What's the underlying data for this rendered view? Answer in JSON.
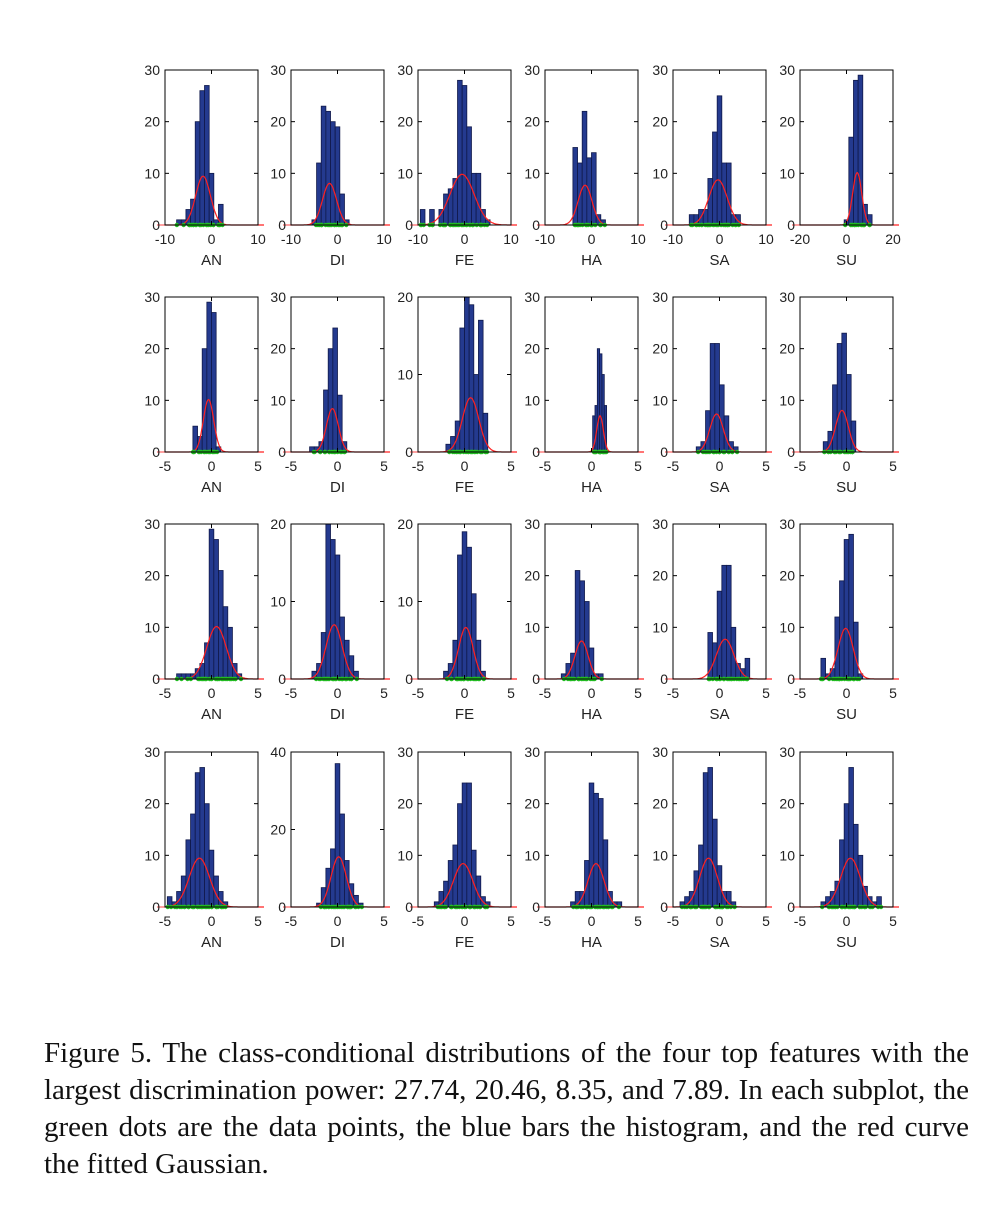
{
  "figure": {
    "caption": "Figure 5. The class-conditional distributions of the four top features with the largest discrimination power: 27.74, 20.46, 8.35, and 7.89. In each subplot, the green dots are the data points, the blue bars the histogram, and the red curve the fitted Gaussian.",
    "colors": {
      "bar": "#243a8f",
      "bar_edge": "#10194a",
      "gaussian": "#ff2020",
      "points": "#22bb22",
      "axes": "#000000"
    }
  },
  "chart_data": [
    {
      "type": "bar",
      "xlabel": "AN",
      "xlim": [
        -10,
        10
      ],
      "ylim": [
        0,
        30
      ],
      "xticks": [
        -10,
        0,
        10
      ],
      "yticks": [
        0,
        10,
        20,
        30
      ],
      "bin_centers": [
        -7,
        -6,
        -5,
        -4,
        -3,
        -2,
        -1,
        0,
        1,
        2
      ],
      "values": [
        1,
        1,
        3,
        5,
        20,
        26,
        27,
        10,
        1,
        4
      ]
    },
    {
      "type": "bar",
      "xlabel": "DI",
      "xlim": [
        -10,
        10
      ],
      "ylim": [
        0,
        30
      ],
      "xticks": [
        -10,
        0,
        10
      ],
      "yticks": [
        0,
        10,
        20,
        30
      ],
      "bin_centers": [
        -5,
        -4,
        -3,
        -2,
        -1,
        0,
        1,
        2
      ],
      "values": [
        1,
        12,
        23,
        22,
        20,
        19,
        6,
        1
      ]
    },
    {
      "type": "bar",
      "xlabel": "FE",
      "xlim": [
        -10,
        10
      ],
      "ylim": [
        0,
        30
      ],
      "xticks": [
        -10,
        0,
        10
      ],
      "yticks": [
        0,
        10,
        20,
        30
      ],
      "bin_centers": [
        -9,
        -7,
        -5,
        -4,
        -3,
        -2,
        -1,
        0,
        1,
        2,
        3,
        4,
        5
      ],
      "values": [
        3,
        3,
        3,
        6,
        7,
        9,
        28,
        27,
        19,
        10,
        10,
        3,
        1
      ]
    },
    {
      "type": "bar",
      "xlabel": "HA",
      "xlim": [
        -10,
        10
      ],
      "ylim": [
        0,
        30
      ],
      "xticks": [
        -10,
        0,
        10
      ],
      "yticks": [
        0,
        10,
        20,
        30
      ],
      "bin_centers": [
        -3.5,
        -2.5,
        -1.5,
        -0.5,
        0.5,
        1.5,
        2.5
      ],
      "values": [
        15,
        12,
        22,
        13,
        14,
        2,
        1
      ]
    },
    {
      "type": "bar",
      "xlabel": "SA",
      "xlim": [
        -10,
        10
      ],
      "ylim": [
        0,
        30
      ],
      "xticks": [
        -10,
        0,
        10
      ],
      "yticks": [
        0,
        10,
        20,
        30
      ],
      "bin_centers": [
        -6,
        -5,
        -4,
        -3,
        -2,
        -1,
        0,
        1,
        2,
        3,
        4
      ],
      "values": [
        2,
        2,
        3,
        3,
        9,
        18,
        25,
        12,
        12,
        2,
        2
      ]
    },
    {
      "type": "bar",
      "xlabel": "SU",
      "xlim": [
        -20,
        20
      ],
      "ylim": [
        0,
        30
      ],
      "xticks": [
        -20,
        0,
        20
      ],
      "yticks": [
        0,
        10,
        20,
        30
      ],
      "bin_centers": [
        0,
        2,
        4,
        6,
        8,
        10
      ],
      "values": [
        1,
        17,
        28,
        29,
        4,
        2
      ]
    },
    {
      "type": "bar",
      "xlabel": "AN",
      "xlim": [
        -5,
        5
      ],
      "ylim": [
        0,
        30
      ],
      "xticks": [
        -5,
        0,
        5
      ],
      "yticks": [
        0,
        10,
        20,
        30
      ],
      "bin_centers": [
        -1.75,
        -1.25,
        -0.75,
        -0.25,
        0.25,
        0.75
      ],
      "values": [
        5,
        3,
        20,
        29,
        27,
        1
      ]
    },
    {
      "type": "bar",
      "xlabel": "DI",
      "xlim": [
        -5,
        5
      ],
      "ylim": [
        0,
        30
      ],
      "xticks": [
        -5,
        0,
        5
      ],
      "yticks": [
        0,
        10,
        20,
        30
      ],
      "bin_centers": [
        -2.75,
        -2.25,
        -1.75,
        -1.25,
        -0.75,
        -0.25,
        0.25,
        0.75
      ],
      "values": [
        1,
        1,
        2,
        12,
        20,
        24,
        11,
        2
      ]
    },
    {
      "type": "bar",
      "xlabel": "FE",
      "xlim": [
        -5,
        5
      ],
      "ylim": [
        0,
        20
      ],
      "xticks": [
        -5,
        0,
        5
      ],
      "yticks": [
        0,
        10,
        20
      ],
      "bin_centers": [
        -1.75,
        -1.25,
        -0.75,
        -0.25,
        0.25,
        0.75,
        1.25,
        1.75,
        2.25
      ],
      "values": [
        1,
        2,
        4,
        16,
        20,
        19,
        10,
        17,
        5
      ]
    },
    {
      "type": "bar",
      "xlabel": "HA",
      "xlim": [
        -5,
        5
      ],
      "ylim": [
        0,
        30
      ],
      "xticks": [
        -5,
        0,
        5
      ],
      "yticks": [
        0,
        10,
        20,
        30
      ],
      "bin_centers": [
        0.25,
        0.5,
        0.75,
        1,
        1.25,
        1.5
      ],
      "values": [
        7,
        9,
        20,
        19,
        15,
        9
      ]
    },
    {
      "type": "bar",
      "xlabel": "SA",
      "xlim": [
        -5,
        5
      ],
      "ylim": [
        0,
        30
      ],
      "xticks": [
        -5,
        0,
        5
      ],
      "yticks": [
        0,
        10,
        20,
        30
      ],
      "bin_centers": [
        -2.25,
        -1.75,
        -1.25,
        -0.75,
        -0.25,
        0.25,
        0.75,
        1.25,
        1.75
      ],
      "values": [
        1,
        2,
        8,
        21,
        21,
        13,
        7,
        2,
        1
      ]
    },
    {
      "type": "bar",
      "xlabel": "SU",
      "xlim": [
        -5,
        5
      ],
      "ylim": [
        0,
        30
      ],
      "xticks": [
        -5,
        0,
        5
      ],
      "yticks": [
        0,
        10,
        20,
        30
      ],
      "bin_centers": [
        -2.25,
        -1.75,
        -1.25,
        -0.75,
        -0.25,
        0.25,
        0.75
      ],
      "values": [
        2,
        4,
        13,
        21,
        23,
        15,
        6
      ]
    },
    {
      "type": "bar",
      "xlabel": "AN",
      "xlim": [
        -5,
        5
      ],
      "ylim": [
        0,
        30
      ],
      "xticks": [
        -5,
        0,
        5
      ],
      "yticks": [
        0,
        10,
        20,
        30
      ],
      "bin_centers": [
        -3.5,
        -3,
        -2.5,
        -2,
        -1.5,
        -1,
        -0.5,
        0,
        0.5,
        1,
        1.5,
        2,
        2.5,
        3
      ],
      "values": [
        1,
        1,
        1,
        1,
        2,
        3,
        7,
        29,
        27,
        21,
        14,
        10,
        3,
        1
      ]
    },
    {
      "type": "bar",
      "xlabel": "DI",
      "xlim": [
        -5,
        5
      ],
      "ylim": [
        0,
        20
      ],
      "xticks": [
        -5,
        0,
        5
      ],
      "yticks": [
        0,
        10,
        20
      ],
      "bin_centers": [
        -2.5,
        -2,
        -1.5,
        -1,
        -0.5,
        0,
        0.5,
        1,
        1.5,
        2
      ],
      "values": [
        1,
        2,
        6,
        20,
        18,
        16,
        8,
        5,
        3,
        1
      ]
    },
    {
      "type": "bar",
      "xlabel": "FE",
      "xlim": [
        -5,
        5
      ],
      "ylim": [
        0,
        20
      ],
      "xticks": [
        -5,
        0,
        5
      ],
      "yticks": [
        0,
        10,
        20
      ],
      "bin_centers": [
        -2,
        -1.5,
        -1,
        -0.5,
        0,
        0.5,
        1,
        1.5,
        2
      ],
      "values": [
        1,
        2,
        5,
        16,
        19,
        17,
        11,
        5,
        1
      ]
    },
    {
      "type": "bar",
      "xlabel": "HA",
      "xlim": [
        -5,
        5
      ],
      "ylim": [
        0,
        30
      ],
      "xticks": [
        -5,
        0,
        5
      ],
      "yticks": [
        0,
        10,
        20,
        30
      ],
      "bin_centers": [
        -3,
        -2.5,
        -2,
        -1.5,
        -1,
        -0.5,
        0,
        0.5,
        1
      ],
      "values": [
        1,
        3,
        5,
        21,
        19,
        15,
        6,
        1,
        1
      ]
    },
    {
      "type": "bar",
      "xlabel": "SA",
      "xlim": [
        -5,
        5
      ],
      "ylim": [
        0,
        30
      ],
      "xticks": [
        -5,
        0,
        5
      ],
      "yticks": [
        0,
        10,
        20,
        30
      ],
      "bin_centers": [
        -1,
        -0.5,
        0,
        0.5,
        1,
        1.5,
        2,
        2.5,
        3
      ],
      "values": [
        9,
        7,
        17,
        22,
        22,
        10,
        3,
        2,
        4
      ]
    },
    {
      "type": "bar",
      "xlabel": "SU",
      "xlim": [
        -5,
        5
      ],
      "ylim": [
        0,
        30
      ],
      "xticks": [
        -5,
        0,
        5
      ],
      "yticks": [
        0,
        10,
        20,
        30
      ],
      "bin_centers": [
        -2.5,
        -2,
        -1.5,
        -1,
        -0.5,
        0,
        0.5,
        1,
        1.5
      ],
      "values": [
        4,
        1,
        2,
        12,
        19,
        27,
        28,
        11,
        1
      ]
    },
    {
      "type": "bar",
      "xlabel": "AN",
      "xlim": [
        -5,
        5
      ],
      "ylim": [
        0,
        30
      ],
      "xticks": [
        -5,
        0,
        5
      ],
      "yticks": [
        0,
        10,
        20,
        30
      ],
      "bin_centers": [
        -4.5,
        -4,
        -3.5,
        -3,
        -2.5,
        -2,
        -1.5,
        -1,
        -0.5,
        0,
        0.5,
        1,
        1.5
      ],
      "values": [
        2,
        1,
        3,
        6,
        13,
        18,
        26,
        27,
        20,
        11,
        6,
        3,
        1
      ]
    },
    {
      "type": "bar",
      "xlabel": "DI",
      "xlim": [
        -5,
        5
      ],
      "ylim": [
        0,
        40
      ],
      "xticks": [
        -5,
        0,
        5
      ],
      "yticks": [
        0,
        20,
        40
      ],
      "bin_centers": [
        -2,
        -1.5,
        -1,
        -0.5,
        0,
        0.5,
        1,
        1.5,
        2,
        2.5
      ],
      "values": [
        1,
        5,
        10,
        15,
        37,
        24,
        12,
        6,
        3,
        1
      ]
    },
    {
      "type": "bar",
      "xlabel": "FE",
      "xlim": [
        -5,
        5
      ],
      "ylim": [
        0,
        30
      ],
      "xticks": [
        -5,
        0,
        5
      ],
      "yticks": [
        0,
        10,
        20,
        30
      ],
      "bin_centers": [
        -3,
        -2.5,
        -2,
        -1.5,
        -1,
        -0.5,
        0,
        0.5,
        1,
        1.5,
        2,
        2.5
      ],
      "values": [
        1,
        3,
        5,
        9,
        12,
        20,
        24,
        24,
        11,
        6,
        2,
        1
      ]
    },
    {
      "type": "bar",
      "xlabel": "HA",
      "xlim": [
        -5,
        5
      ],
      "ylim": [
        0,
        30
      ],
      "xticks": [
        -5,
        0,
        5
      ],
      "yticks": [
        0,
        10,
        20,
        30
      ],
      "bin_centers": [
        -2,
        -1.5,
        -1,
        -0.5,
        0,
        0.5,
        1,
        1.5,
        2,
        2.5,
        3
      ],
      "values": [
        1,
        3,
        3,
        9,
        24,
        22,
        21,
        13,
        3,
        1,
        1
      ]
    },
    {
      "type": "bar",
      "xlabel": "SA",
      "xlim": [
        -5,
        5
      ],
      "ylim": [
        0,
        30
      ],
      "xticks": [
        -5,
        0,
        5
      ],
      "yticks": [
        0,
        10,
        20,
        30
      ],
      "bin_centers": [
        -4,
        -3.5,
        -3,
        -2.5,
        -2,
        -1.5,
        -1,
        -0.5,
        0,
        0.5,
        1,
        1.5
      ],
      "values": [
        1,
        2,
        3,
        7,
        12,
        26,
        27,
        17,
        8,
        3,
        3,
        1
      ]
    },
    {
      "type": "bar",
      "xlabel": "SU",
      "xlim": [
        -5,
        5
      ],
      "ylim": [
        0,
        30
      ],
      "xticks": [
        -5,
        0,
        5
      ],
      "yticks": [
        0,
        10,
        20,
        30
      ],
      "bin_centers": [
        -2.5,
        -2,
        -1.5,
        -1,
        -0.5,
        0,
        0.5,
        1,
        1.5,
        2,
        2.5,
        3,
        3.5
      ],
      "values": [
        1,
        2,
        3,
        5,
        13,
        20,
        27,
        16,
        10,
        4,
        2,
        1,
        2
      ]
    }
  ]
}
